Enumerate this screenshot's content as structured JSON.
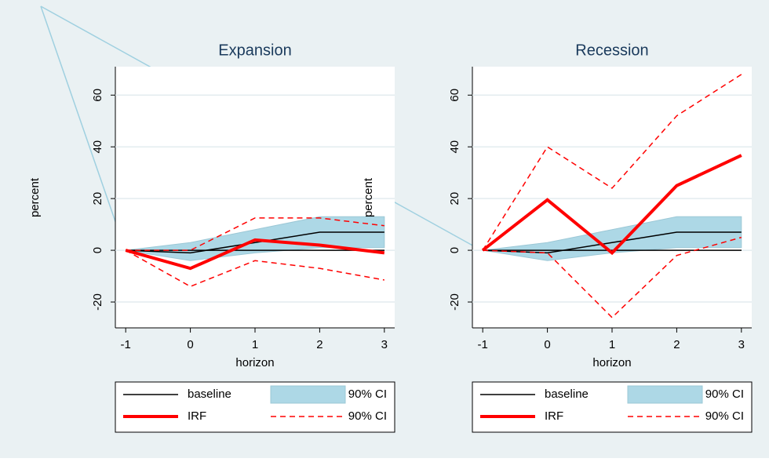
{
  "chart_data": [
    {
      "type": "line",
      "title": "Expansion",
      "xlabel": "horizon",
      "ylabel": "percent",
      "x": [
        -1,
        0,
        1,
        2,
        3
      ],
      "xlim": [
        -1.16,
        3.16
      ],
      "xticks": [
        -1,
        0,
        1,
        2,
        3
      ],
      "ylim": [
        -30,
        71
      ],
      "yticks": [
        -20,
        0,
        20,
        40,
        60
      ],
      "grid": true,
      "hline": 0,
      "legend": "bottom",
      "series": [
        {
          "name": "baseline",
          "style": "solid",
          "color": "#000000",
          "values": [
            0,
            -1,
            3,
            7,
            7
          ]
        },
        {
          "name": "90% CI",
          "style": "band",
          "color": "#add8e6",
          "lower": [
            0,
            -4,
            -1,
            1,
            1
          ],
          "upper": [
            0,
            3,
            8,
            13,
            13
          ]
        },
        {
          "name": "IRF",
          "style": "thick",
          "color": "#ff0000",
          "values": [
            0,
            -7,
            4,
            2,
            -1
          ]
        },
        {
          "name": "90% CI",
          "style": "dashed",
          "color": "#ff0000",
          "lower": [
            0,
            -14,
            -4,
            -7,
            -11.5
          ],
          "upper": [
            0,
            0,
            12.5,
            12.5,
            9.5
          ]
        }
      ]
    },
    {
      "type": "line",
      "title": "Recession",
      "xlabel": "horizon",
      "ylabel": "percent",
      "x": [
        -1,
        0,
        1,
        2,
        3
      ],
      "xlim": [
        -1.16,
        3.16
      ],
      "xticks": [
        -1,
        0,
        1,
        2,
        3
      ],
      "ylim": [
        -30,
        71
      ],
      "yticks": [
        -20,
        0,
        20,
        40,
        60
      ],
      "grid": true,
      "hline": 0,
      "legend": "bottom",
      "series": [
        {
          "name": "baseline",
          "style": "solid",
          "color": "#000000",
          "values": [
            0,
            -1,
            3,
            7,
            7
          ]
        },
        {
          "name": "90% CI",
          "style": "band",
          "color": "#add8e6",
          "lower": [
            0,
            -4,
            -1,
            1,
            1
          ],
          "upper": [
            0,
            3,
            8,
            13,
            13
          ]
        },
        {
          "name": "IRF",
          "style": "thick",
          "color": "#ff0000",
          "values": [
            0,
            19.5,
            -1,
            25,
            36.7
          ]
        },
        {
          "name": "90% CI",
          "style": "dashed",
          "color": "#ff0000",
          "lower": [
            0,
            -1,
            -26,
            -2,
            5
          ],
          "upper": [
            0,
            40,
            24,
            52,
            68
          ]
        }
      ]
    }
  ]
}
